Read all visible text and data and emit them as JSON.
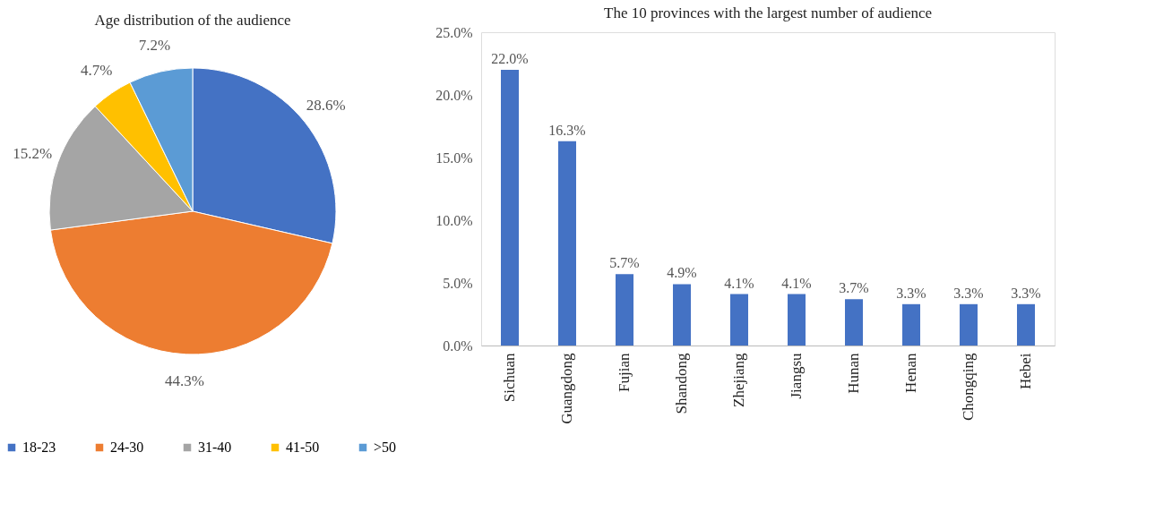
{
  "chart_data": [
    {
      "type": "pie",
      "title": "Age distribution of the audience",
      "categories": [
        "18-23",
        "24-30",
        "31-40",
        "41-50",
        ">50"
      ],
      "values": [
        28.6,
        44.3,
        15.2,
        4.7,
        7.2
      ],
      "value_labels": [
        "28.6%",
        "44.3%",
        "15.2%",
        "4.7%",
        "7.2%"
      ],
      "colors": [
        "#4472c4",
        "#ed7d31",
        "#a5a5a5",
        "#ffc000",
        "#5b9bd5"
      ],
      "legend": "bottom"
    },
    {
      "type": "bar",
      "title": "The 10 provinces with the largest number of audience",
      "categories": [
        "Sichuan",
        "Guangdong",
        "Fujian",
        "Shandong",
        "Zhejiang",
        "Jiangsu",
        "Hunan",
        "Henan",
        "Chongqing",
        "Hebei"
      ],
      "values": [
        22.0,
        16.3,
        5.7,
        4.9,
        4.1,
        4.1,
        3.7,
        3.3,
        3.3,
        3.3
      ],
      "value_labels": [
        "22.0%",
        "16.3%",
        "5.7%",
        "4.9%",
        "4.1%",
        "4.1%",
        "3.7%",
        "3.3%",
        "3.3%",
        "3.3%"
      ],
      "color": "#4472c4",
      "ylim": [
        0,
        25
      ],
      "yticks": [
        {
          "value": 0,
          "label": "0.0%"
        },
        {
          "value": 5,
          "label": "5.0%"
        },
        {
          "value": 10,
          "label": "10.0%"
        },
        {
          "value": 15,
          "label": "15.0%"
        },
        {
          "value": 20,
          "label": "20.0%"
        },
        {
          "value": 25,
          "label": "25.0%"
        }
      ],
      "grid": false
    }
  ]
}
